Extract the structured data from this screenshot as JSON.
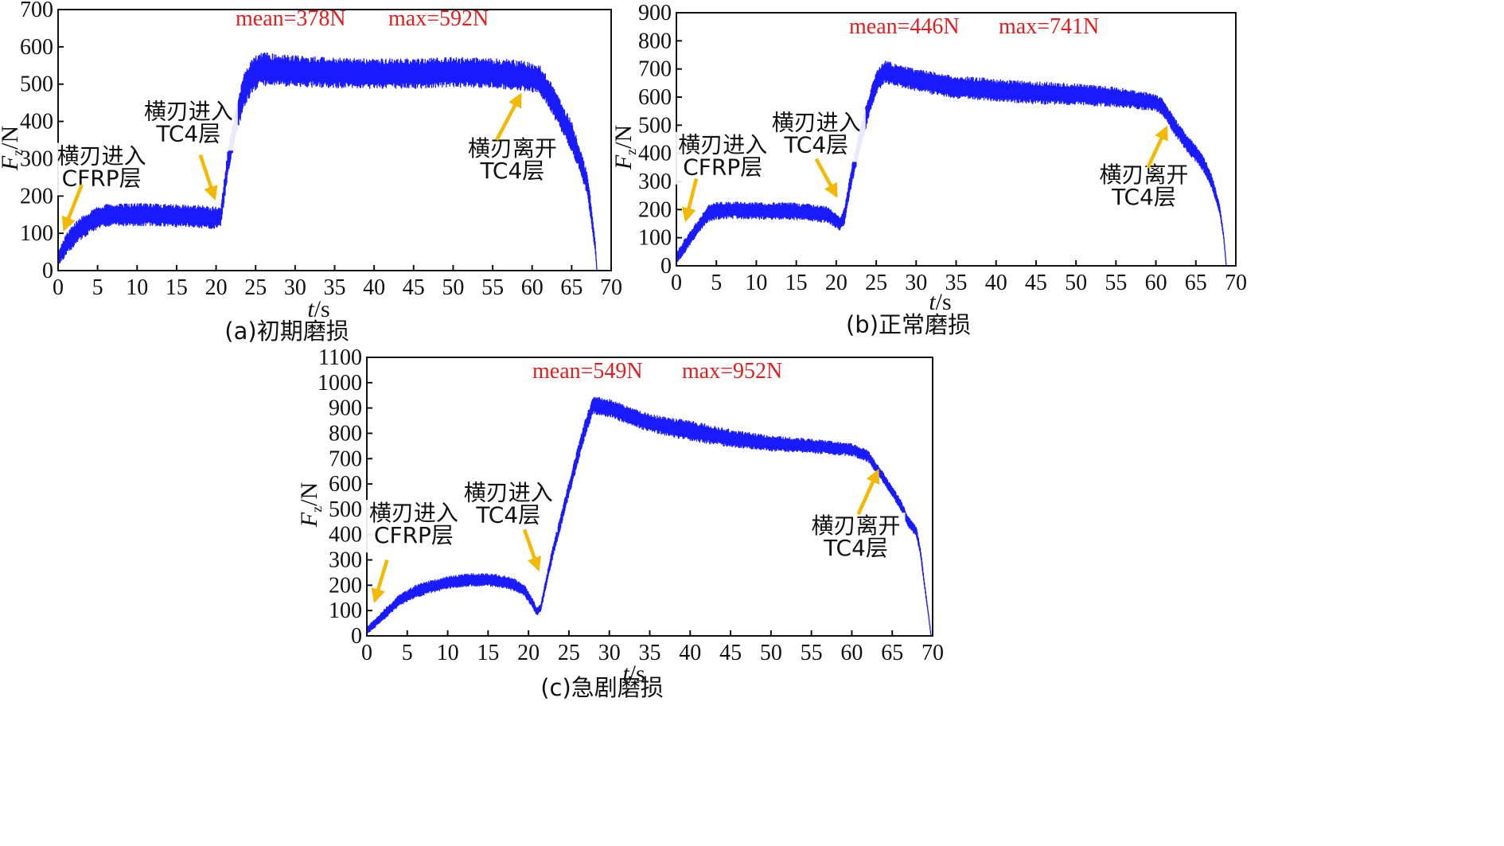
{
  "colors": {
    "series": "#1a1aff",
    "arrow": "#f5b800",
    "stat_text": "#e11d1d",
    "axis": "#111111"
  },
  "chart_data": [
    {
      "id": "a",
      "type": "line",
      "caption": "(a)初期磨损",
      "xlabel_italic": "t",
      "xlabel_unit": "/s",
      "ylabel_italic": "F",
      "ylabel_sub": "z",
      "ylabel_unit": "/N",
      "xlim": [
        0,
        70
      ],
      "ylim": [
        0,
        700
      ],
      "xticks": [
        0,
        5,
        10,
        15,
        20,
        25,
        30,
        35,
        40,
        45,
        50,
        55,
        60,
        65,
        70
      ],
      "yticks": [
        0,
        100,
        200,
        300,
        400,
        500,
        600,
        700
      ],
      "mean_label": "mean=378N",
      "max_label": "max=592N",
      "envelope": {
        "x": [
          0,
          1,
          2,
          3,
          4,
          5,
          6,
          8,
          10,
          12,
          14,
          16,
          18,
          20,
          20.6,
          21.5,
          22.5,
          23.5,
          24.5,
          25.5,
          30,
          35,
          40,
          45,
          50,
          55,
          59,
          61,
          62,
          63,
          64,
          65,
          66,
          67,
          67.5,
          68,
          68.2
        ],
        "mid": [
          30,
          70,
          95,
          115,
          130,
          140,
          147,
          150,
          150,
          150,
          148,
          146,
          145,
          140,
          145,
          290,
          400,
          480,
          520,
          540,
          535,
          530,
          528,
          528,
          532,
          530,
          522,
          510,
          480,
          440,
          400,
          360,
          300,
          230,
          150,
          60,
          0
        ],
        "amp": [
          20,
          30,
          30,
          30,
          30,
          30,
          30,
          30,
          30,
          30,
          30,
          30,
          30,
          30,
          25,
          35,
          40,
          45,
          45,
          45,
          42,
          40,
          40,
          40,
          40,
          40,
          40,
          40,
          40,
          40,
          40,
          40,
          35,
          30,
          25,
          15,
          2
        ]
      },
      "annotations": [
        {
          "lines": [
            "横刃进入",
            "CFRP层"
          ],
          "text_at": [
            5.5,
            270
          ],
          "arrow_from": [
            3,
            230
          ],
          "arrow_to": [
            0.8,
            112
          ]
        },
        {
          "lines": [
            "横刃进入",
            "TC4层"
          ],
          "text_at": [
            16.5,
            390
          ],
          "arrow_from": [
            18,
            310
          ],
          "arrow_to": [
            19.8,
            195
          ]
        },
        {
          "lines": [
            "横刃离开",
            "TC4层"
          ],
          "text_at": [
            57.5,
            290
          ],
          "arrow_from": [
            55.5,
            350
          ],
          "arrow_to": [
            58.5,
            470
          ]
        }
      ]
    },
    {
      "id": "b",
      "type": "line",
      "caption": "(b)正常磨损",
      "xlabel_italic": "t",
      "xlabel_unit": "/s",
      "ylabel_italic": "F",
      "ylabel_sub": "z",
      "ylabel_unit": "/N",
      "xlim": [
        0,
        70
      ],
      "ylim": [
        0,
        900
      ],
      "xticks": [
        0,
        5,
        10,
        15,
        20,
        25,
        30,
        35,
        40,
        45,
        50,
        55,
        60,
        65,
        70
      ],
      "yticks": [
        0,
        100,
        200,
        300,
        400,
        500,
        600,
        700,
        800,
        900
      ],
      "mean_label": "mean=446N",
      "max_label": "max=741N",
      "envelope": {
        "x": [
          0,
          1,
          2,
          3,
          4,
          5,
          7,
          10,
          13,
          16,
          19,
          20.5,
          21,
          22,
          23,
          24,
          25,
          26,
          30,
          35,
          40,
          45,
          50,
          55,
          60,
          61,
          62,
          63,
          64,
          65,
          66,
          67,
          68,
          68.5,
          68.8
        ],
        "mid": [
          25,
          70,
          110,
          150,
          185,
          195,
          198,
          195,
          195,
          192,
          182,
          150,
          175,
          330,
          450,
          560,
          650,
          690,
          660,
          635,
          625,
          615,
          610,
          600,
          580,
          560,
          510,
          470,
          430,
          400,
          360,
          300,
          200,
          100,
          0
        ],
        "amp": [
          20,
          25,
          25,
          25,
          30,
          30,
          30,
          30,
          30,
          30,
          30,
          25,
          30,
          35,
          40,
          40,
          40,
          40,
          40,
          40,
          40,
          40,
          38,
          35,
          30,
          30,
          30,
          30,
          30,
          30,
          28,
          25,
          15,
          8,
          2
        ]
      },
      "annotations": [
        {
          "lines": [
            "横刃进入",
            "CFRP层"
          ],
          "text_at": [
            5.8,
            380
          ],
          "arrow_from": [
            2.5,
            310
          ],
          "arrow_to": [
            1.2,
            165
          ]
        },
        {
          "lines": [
            "横刃进入",
            "TC4层"
          ],
          "text_at": [
            17.5,
            460
          ],
          "arrow_from": [
            17.5,
            380
          ],
          "arrow_to": [
            20,
            250
          ]
        },
        {
          "lines": [
            "横刃离开",
            "TC4层"
          ],
          "text_at": [
            58.5,
            275
          ],
          "arrow_from": [
            59,
            350
          ],
          "arrow_to": [
            61.3,
            490
          ]
        }
      ]
    },
    {
      "id": "c",
      "type": "line",
      "caption": "(c)急剧磨损",
      "xlabel_italic": "t",
      "xlabel_unit": "/s",
      "ylabel_italic": "F",
      "ylabel_sub": "z",
      "ylabel_unit": "/N",
      "xlim": [
        0,
        70
      ],
      "ylim": [
        0,
        1100
      ],
      "xticks": [
        0,
        5,
        10,
        15,
        20,
        25,
        30,
        35,
        40,
        45,
        50,
        55,
        60,
        65,
        70
      ],
      "yticks": [
        0,
        100,
        200,
        300,
        400,
        500,
        600,
        700,
        800,
        900,
        1000,
        1100
      ],
      "mean_label": "mean=549N",
      "max_label": "max=952N",
      "envelope": {
        "x": [
          0,
          2,
          4,
          6,
          8,
          10,
          12,
          14,
          16,
          18,
          19.5,
          20.5,
          21,
          21.5,
          23,
          25,
          27,
          28,
          30,
          35,
          40,
          45,
          50,
          55,
          60,
          62,
          64,
          66,
          67,
          68,
          68.5,
          69,
          69.5,
          69.8
        ],
        "mid": [
          20,
          80,
          140,
          175,
          195,
          210,
          220,
          222,
          218,
          205,
          180,
          130,
          95,
          110,
          330,
          580,
          820,
          910,
          900,
          840,
          810,
          780,
          760,
          750,
          735,
          710,
          620,
          520,
          450,
          410,
          330,
          200,
          80,
          0
        ],
        "amp": [
          15,
          20,
          22,
          25,
          25,
          25,
          25,
          25,
          25,
          25,
          22,
          18,
          15,
          15,
          25,
          30,
          35,
          35,
          35,
          35,
          40,
          35,
          30,
          28,
          25,
          22,
          20,
          20,
          20,
          20,
          15,
          10,
          5,
          2
        ]
      },
      "annotations": [
        {
          "lines": [
            "横刃进入",
            "CFRP层"
          ],
          "text_at": [
            5.8,
            430
          ],
          "arrow_from": [
            2.5,
            300
          ],
          "arrow_to": [
            1,
            140
          ]
        },
        {
          "lines": [
            "横刃进入",
            "TC4层"
          ],
          "text_at": [
            17.5,
            510
          ],
          "arrow_from": [
            19.5,
            420
          ],
          "arrow_to": [
            21.2,
            265
          ]
        },
        {
          "lines": [
            "横刃离开",
            "TC4层"
          ],
          "text_at": [
            60.5,
            380
          ],
          "arrow_from": [
            60.8,
            480
          ],
          "arrow_to": [
            63.2,
            650
          ]
        }
      ]
    }
  ]
}
